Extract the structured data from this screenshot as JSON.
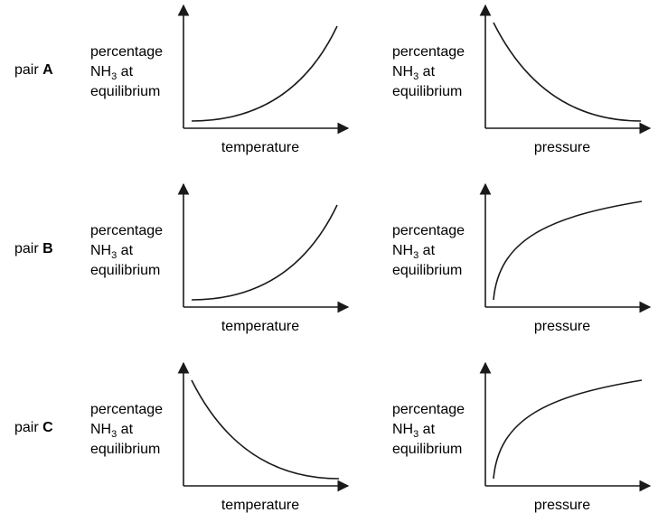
{
  "rows": [
    {
      "pair_prefix": "pair",
      "pair_letter": "A"
    },
    {
      "pair_prefix": "pair",
      "pair_letter": "B"
    },
    {
      "pair_prefix": "pair",
      "pair_letter": "C"
    }
  ],
  "chart_data": [
    {
      "type": "line",
      "pair": "A",
      "ylabel_line1": "percentage",
      "ylabel_line2_main": "NH",
      "ylabel_line2_sub": "3",
      "ylabel_line2_rest": " at",
      "ylabel_line3": "equilibrium",
      "xlabel": "temperature",
      "trend": "increasing-convex"
    },
    {
      "type": "line",
      "pair": "A",
      "ylabel_line1": "percentage",
      "ylabel_line2_main": "NH",
      "ylabel_line2_sub": "3",
      "ylabel_line2_rest": " at",
      "ylabel_line3": "equilibrium",
      "xlabel": "pressure",
      "trend": "decreasing-convex"
    },
    {
      "type": "line",
      "pair": "B",
      "ylabel_line1": "percentage",
      "ylabel_line2_main": "NH",
      "ylabel_line2_sub": "3",
      "ylabel_line2_rest": " at",
      "ylabel_line3": "equilibrium",
      "xlabel": "temperature",
      "trend": "increasing-convex"
    },
    {
      "type": "line",
      "pair": "B",
      "ylabel_line1": "percentage",
      "ylabel_line2_main": "NH",
      "ylabel_line2_sub": "3",
      "ylabel_line2_rest": " at",
      "ylabel_line3": "equilibrium",
      "xlabel": "pressure",
      "trend": "increasing-concave"
    },
    {
      "type": "line",
      "pair": "C",
      "ylabel_line1": "percentage",
      "ylabel_line2_main": "NH",
      "ylabel_line2_sub": "3",
      "ylabel_line2_rest": " at",
      "ylabel_line3": "equilibrium",
      "xlabel": "temperature",
      "trend": "decreasing-convex"
    },
    {
      "type": "line",
      "pair": "C",
      "ylabel_line1": "percentage",
      "ylabel_line2_main": "NH",
      "ylabel_line2_sub": "3",
      "ylabel_line2_rest": " at",
      "ylabel_line3": "equilibrium",
      "xlabel": "pressure",
      "trend": "increasing-concave"
    }
  ]
}
